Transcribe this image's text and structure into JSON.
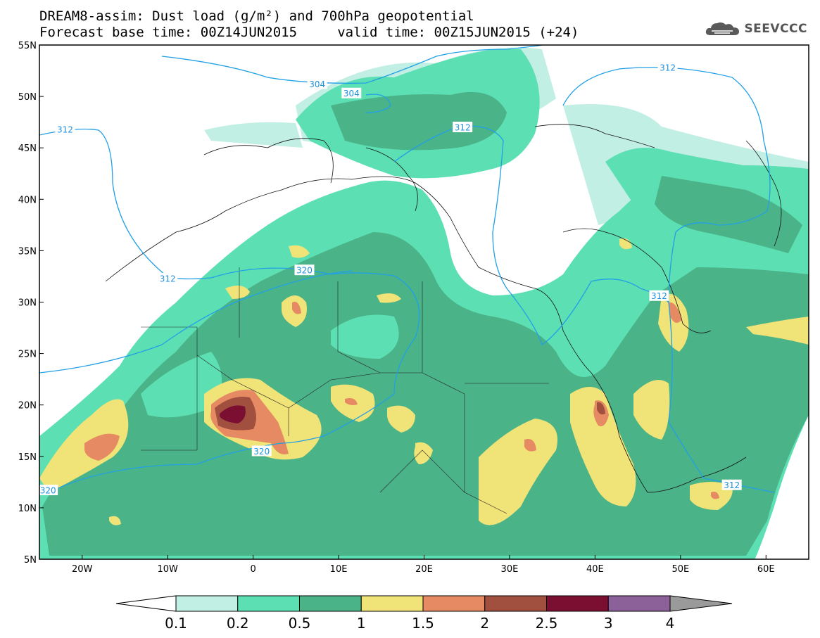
{
  "header": {
    "title_line1": "DREAM8-assim: Dust load (g/m²) and 700hPa geopotential",
    "title_line2": "Forecast base time: 00Z14JUN2015     valid time: 00Z15JUN2015 (+24)",
    "logo_text": "SEEVCCC",
    "logo_icon": "cloud-icon"
  },
  "map": {
    "lon_range": [
      -25,
      65
    ],
    "lat_range": [
      5,
      55
    ],
    "lat_labels": [
      "55N",
      "50N",
      "45N",
      "40N",
      "35N",
      "30N",
      "25N",
      "20N",
      "15N",
      "10N",
      "5N"
    ],
    "lon_labels": [
      "20W",
      "10W",
      "0",
      "10E",
      "20E",
      "30E",
      "40E",
      "50E",
      "60E"
    ],
    "contour_labels": [
      {
        "text": "304",
        "lon": 7.5,
        "lat": 51.2
      },
      {
        "text": "304",
        "lon": 11.5,
        "lat": 50.3
      },
      {
        "text": "312",
        "lon": 24.5,
        "lat": 47.0
      },
      {
        "text": "312",
        "lon": 48.5,
        "lat": 52.8
      },
      {
        "text": "312",
        "lon": -22.0,
        "lat": 46.8
      },
      {
        "text": "312",
        "lon": -10.0,
        "lat": 32.3
      },
      {
        "text": "320",
        "lon": 6.0,
        "lat": 33.1
      },
      {
        "text": "312",
        "lon": 47.5,
        "lat": 30.6
      },
      {
        "text": "320",
        "lon": 1.0,
        "lat": 15.5
      },
      {
        "text": "312",
        "lon": 56.0,
        "lat": 12.2
      },
      {
        "text": "320",
        "lon": -24.0,
        "lat": 11.7
      }
    ]
  },
  "colorbar": {
    "labels": [
      "0.1",
      "0.2",
      "0.5",
      "1",
      "1.5",
      "2",
      "2.5",
      "3",
      "4"
    ],
    "colors": [
      "#c2efe3",
      "#5ddfb4",
      "#4bb388",
      "#f0e378",
      "#e58a62",
      "#a14f3e",
      "#7a0f32",
      "#8c6199",
      "#9a9a9a"
    ]
  }
}
